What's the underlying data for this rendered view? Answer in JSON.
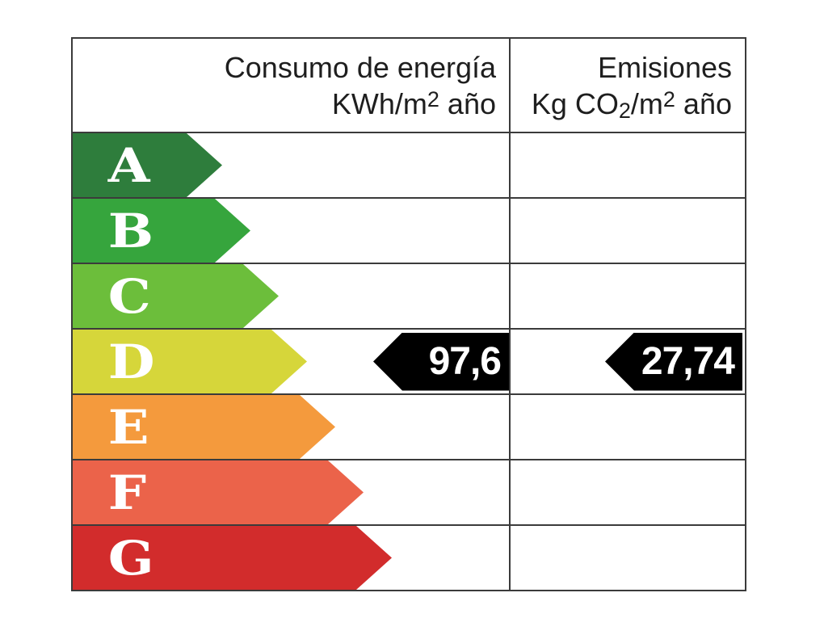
{
  "header": {
    "consumo": {
      "line1": "Consumo de energía",
      "unit_pre": "KWh/m",
      "unit_sup": "2",
      "unit_post": " año"
    },
    "emisiones": {
      "line1": "Emisiones",
      "unit_pre": "Kg CO",
      "unit_sub": "2",
      "unit_mid": "/m",
      "unit_sup": "2",
      "unit_post": " año"
    }
  },
  "scale": [
    {
      "letter": "A",
      "color": "#2e7d3c",
      "arrow_width": 185
    },
    {
      "letter": "B",
      "color": "#36a53d",
      "arrow_width": 220
    },
    {
      "letter": "C",
      "color": "#6cbe3b",
      "arrow_width": 255
    },
    {
      "letter": "D",
      "color": "#d6d63a",
      "arrow_width": 290
    },
    {
      "letter": "E",
      "color": "#f49a3d",
      "arrow_width": 325
    },
    {
      "letter": "F",
      "color": "#eb634a",
      "arrow_width": 360
    },
    {
      "letter": "G",
      "color": "#d22c2c",
      "arrow_width": 395
    }
  ],
  "indicator": {
    "row": "D",
    "consumo_value": "97,6",
    "emisiones_value": "27,74",
    "background": "#000000",
    "text_color": "#ffffff"
  },
  "colors": {
    "border": "#3b3b3b",
    "header_text": "#1e1e1e",
    "letter_text": "#ffffff"
  },
  "chart_data": {
    "type": "bar",
    "categories": [
      "A",
      "B",
      "C",
      "D",
      "E",
      "F",
      "G"
    ],
    "category_colors": [
      "#2e7d3c",
      "#36a53d",
      "#6cbe3b",
      "#d6d63a",
      "#f49a3d",
      "#eb634a",
      "#d22c2c"
    ],
    "series": [
      {
        "name": "Consumo de energía KWh/m2 año",
        "rating": "D",
        "value": 97.6,
        "value_label": "97,6"
      },
      {
        "name": "Emisiones Kg CO2/m2 año",
        "rating": "D",
        "value": 27.74,
        "value_label": "27,74"
      }
    ],
    "legend_position": "none",
    "grid": "table-lines"
  }
}
